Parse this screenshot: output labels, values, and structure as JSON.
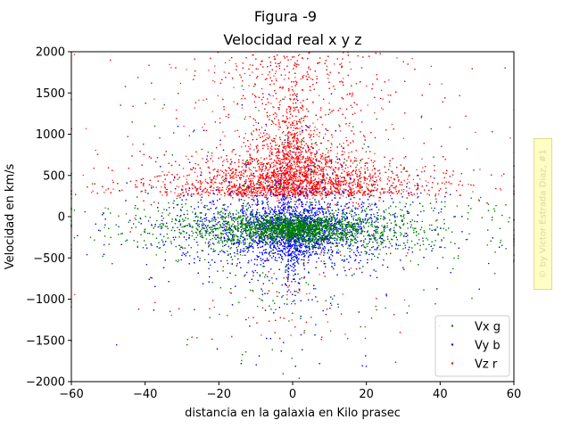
{
  "figure": {
    "suptitle": "Figura -9",
    "watermark": "© by Victor Estrada Diaz, #1"
  },
  "chart_data": {
    "type": "scatter",
    "title": "Velocidad real x y z",
    "xlabel": "distancia en la galaxia en Kilo prasec",
    "ylabel": "Velocidad en km/s",
    "xlim": [
      -60,
      60
    ],
    "ylim": [
      -2000,
      2000
    ],
    "xticks": [
      -60,
      -40,
      -20,
      0,
      20,
      40,
      60
    ],
    "yticks": [
      -2000,
      -1500,
      -1000,
      -500,
      0,
      500,
      1000,
      1500,
      2000
    ],
    "grid": false,
    "legend_position": "lower-right",
    "series": [
      {
        "name": "Vx g",
        "color": "#008000",
        "marker": "dot"
      },
      {
        "name": "Vy b",
        "color": "#0000ff",
        "marker": "dot"
      },
      {
        "name": "Vz r",
        "color": "#ff0000",
        "marker": "dot"
      }
    ],
    "distribution_summary": [
      {
        "series": "Vz r",
        "x_range": [
          -60,
          60
        ],
        "core_y_range": [
          0,
          800
        ],
        "peak_y_near_x0": 1300
      },
      {
        "series": "Vy b",
        "x_range": [
          -60,
          60
        ],
        "core_y_range": [
          -600,
          300
        ],
        "peak_y_near_x0": -800
      },
      {
        "series": "Vx g",
        "x_range": [
          -60,
          60
        ],
        "core_y_range": [
          -300,
          100
        ]
      }
    ]
  }
}
